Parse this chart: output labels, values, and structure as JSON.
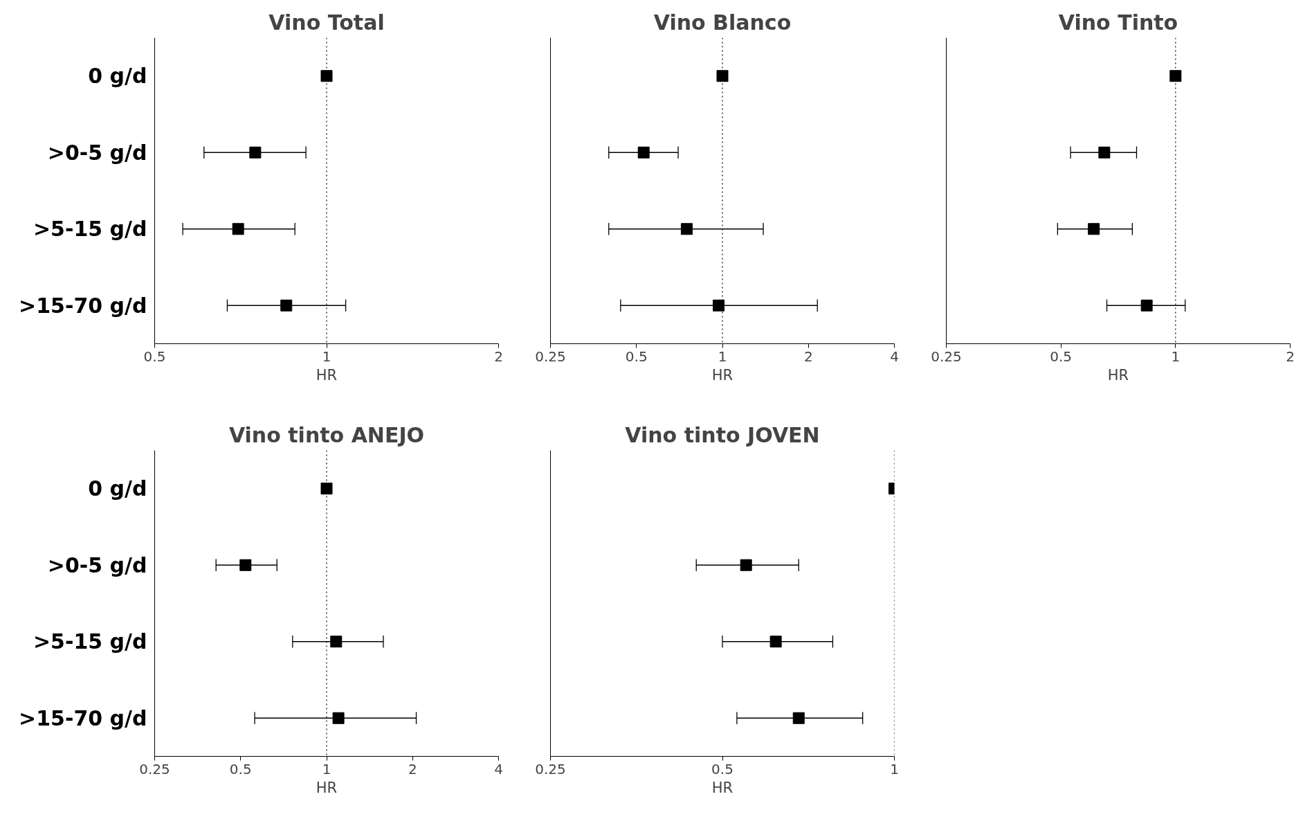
{
  "chart_data": [
    {
      "type": "scatter",
      "orientation": "horizontal",
      "title": "Vino Total",
      "xlabel": "HR",
      "categories": [
        "0 g/d",
        ">0-5 g/d",
        ">5-15 g/d",
        ">15-70 g/d"
      ],
      "values": [
        1,
        0.75,
        0.7,
        0.85
      ],
      "errors": [
        null,
        [
          0.61,
          0.92
        ],
        [
          0.56,
          0.88
        ],
        [
          0.67,
          1.08
        ]
      ],
      "color": "#000000",
      "log": "x",
      "xlim": [
        0.5,
        2
      ],
      "xticks": [
        0.5,
        1,
        2
      ],
      "marker": "square",
      "grid": false,
      "ref_lines": [
        {
          "axis": "x",
          "value": 1,
          "line_style": "dotted"
        }
      ]
    },
    {
      "type": "scatter",
      "orientation": "horizontal",
      "title": "Vino Blanco",
      "xlabel": "HR",
      "categories": [
        null,
        null,
        null,
        null
      ],
      "values": [
        1,
        0.53,
        0.75,
        0.97
      ],
      "errors": [
        null,
        [
          0.4,
          0.7
        ],
        [
          0.4,
          1.39
        ],
        [
          0.44,
          2.15
        ]
      ],
      "color": "#000000",
      "log": "x",
      "xlim": [
        0.25,
        4
      ],
      "xticks": [
        0.25,
        0.5,
        1,
        2,
        4
      ],
      "marker": "square",
      "grid": false,
      "ref_lines": [
        {
          "axis": "x",
          "value": 1,
          "line_style": "dotted"
        }
      ]
    },
    {
      "type": "scatter",
      "orientation": "horizontal",
      "title": "Vino Tinto",
      "xlabel": "HR",
      "categories": [
        null,
        null,
        null,
        null
      ],
      "values": [
        1,
        0.65,
        0.61,
        0.84
      ],
      "errors": [
        null,
        [
          0.53,
          0.79
        ],
        [
          0.49,
          0.77
        ],
        [
          0.66,
          1.06
        ]
      ],
      "color": "#000000",
      "log": "x",
      "xlim": [
        0.25,
        2
      ],
      "xticks": [
        0.25,
        0.5,
        1,
        2
      ],
      "marker": "square",
      "grid": false,
      "ref_lines": [
        {
          "axis": "x",
          "value": 1,
          "line_style": "dotted"
        }
      ]
    },
    {
      "type": "scatter",
      "orientation": "horizontal",
      "title": "Vino tinto ANEJO",
      "xlabel": "HR",
      "categories": [
        "0 g/d",
        ">0-5 g/d",
        ">5-15 g/d",
        ">15-70 g/d"
      ],
      "values": [
        1,
        0.52,
        1.08,
        1.1
      ],
      "errors": [
        null,
        [
          0.41,
          0.67
        ],
        [
          0.76,
          1.58
        ],
        [
          0.56,
          2.06
        ]
      ],
      "color": "#000000",
      "log": "x",
      "xlim": [
        0.25,
        4
      ],
      "xticks": [
        0.25,
        0.5,
        1,
        2,
        4
      ],
      "marker": "square",
      "grid": false,
      "ref_lines": [
        {
          "axis": "x",
          "value": 1,
          "line_style": "dotted"
        }
      ]
    },
    {
      "type": "scatter",
      "orientation": "horizontal",
      "title": "Vino tinto JOVEN",
      "xlabel": "HR",
      "categories": [
        null,
        null,
        null,
        null
      ],
      "values": [
        1,
        0.55,
        0.62,
        0.68
      ],
      "errors": [
        null,
        [
          0.45,
          0.68
        ],
        [
          0.5,
          0.78
        ],
        [
          0.53,
          0.88
        ]
      ],
      "color": "#000000",
      "log": "x",
      "xlim": [
        0.25,
        1
      ],
      "xticks": [
        0.25,
        0.5,
        1
      ],
      "marker": "square",
      "grid": false,
      "ref_lines": [
        {
          "axis": "x",
          "value": 1,
          "line_style": "dotted"
        }
      ]
    }
  ]
}
